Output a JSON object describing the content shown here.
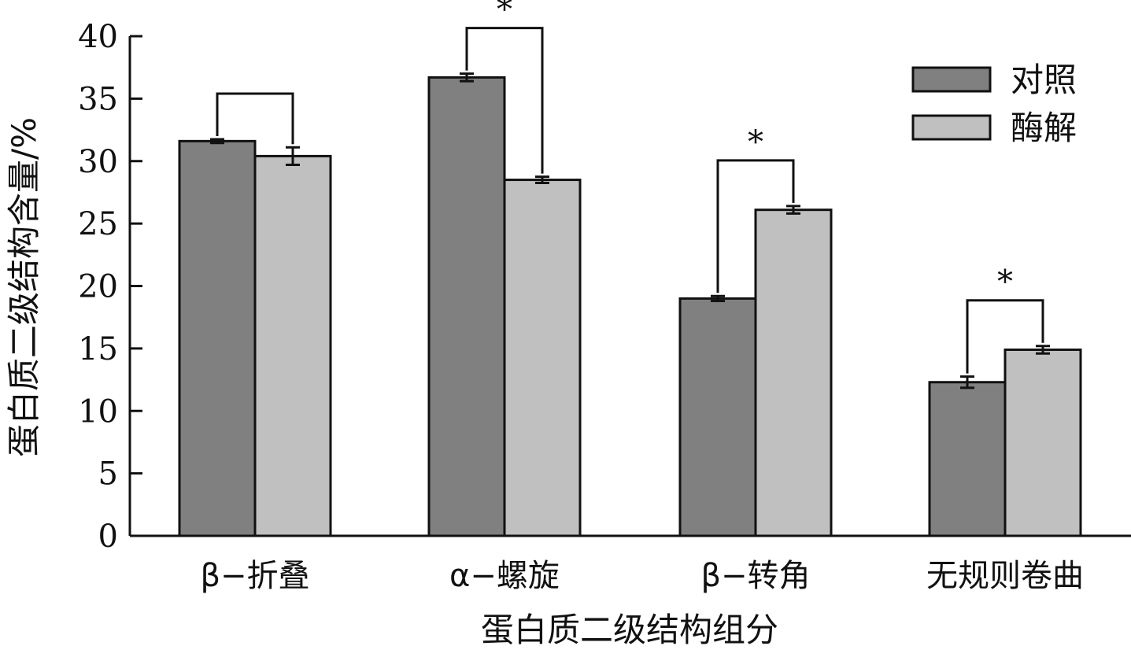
{
  "chart_data": {
    "type": "bar",
    "xlabel": "蛋白质二级结构组分",
    "ylabel": "蛋白质二级结构含量/%",
    "ylim": [
      0,
      40
    ],
    "yticks": [
      "0",
      "5",
      "10",
      "15",
      "20",
      "25",
      "30",
      "35",
      "40"
    ],
    "categories": [
      "β−折叠",
      "α−螺旋",
      "β−转角",
      "无规则卷曲"
    ],
    "series": [
      {
        "name": "对照",
        "color": "#808080",
        "values": [
          31.6,
          36.7,
          19.0,
          12.3
        ],
        "errors": [
          0.15,
          0.3,
          0.2,
          0.45
        ]
      },
      {
        "name": "酶解",
        "color": "#c0c0c0",
        "values": [
          30.4,
          28.5,
          26.1,
          14.9
        ],
        "errors": [
          0.7,
          0.25,
          0.3,
          0.3
        ]
      }
    ],
    "significance": [
      {
        "category": "β−折叠",
        "label": ""
      },
      {
        "category": "α−螺旋",
        "label": "*"
      },
      {
        "category": "β−转角",
        "label": "*"
      },
      {
        "category": "无规则卷曲",
        "label": "*"
      }
    ],
    "grid": false,
    "legend_position": "top-right"
  }
}
